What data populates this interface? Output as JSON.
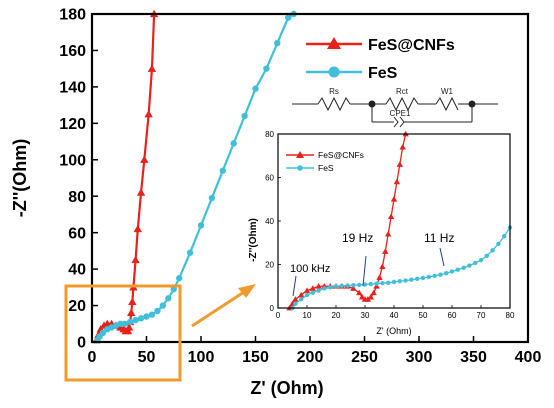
{
  "chart_data": [
    {
      "id": "main",
      "type": "line",
      "xlabel": "Z' (Ohm)",
      "ylabel": "-Z''(Ohm)",
      "xlim": [
        0,
        400
      ],
      "ylim": [
        0,
        180
      ],
      "xticks": [
        0,
        50,
        100,
        150,
        200,
        250,
        300,
        350,
        400
      ],
      "yticks": [
        0,
        20,
        40,
        60,
        80,
        100,
        120,
        140,
        160,
        180
      ],
      "legend_position": "top-right",
      "series": [
        {
          "name": "FeS@CNFs",
          "color": "#e8221b",
          "marker": "triangle",
          "x": [
            4,
            6,
            8,
            11,
            14,
            18,
            22,
            26,
            29,
            31,
            33,
            34,
            35,
            36,
            37,
            38,
            40,
            42,
            45,
            48,
            52,
            55,
            57
          ],
          "y": [
            1,
            4,
            7,
            9,
            10,
            10,
            9,
            8,
            7,
            6,
            6,
            8,
            11,
            16,
            22,
            30,
            45,
            62,
            82,
            100,
            125,
            150,
            180
          ]
        },
        {
          "name": "FeS",
          "color": "#3fc0d8",
          "marker": "circle",
          "x": [
            5,
            7,
            10,
            14,
            18,
            22,
            26,
            30,
            35,
            40,
            45,
            50,
            55,
            60,
            65,
            70,
            75,
            80,
            90,
            100,
            110,
            120,
            130,
            140,
            150,
            160,
            170,
            180,
            185
          ],
          "y": [
            1,
            3,
            5,
            7,
            8,
            9,
            10,
            10,
            11,
            12,
            13,
            14,
            15,
            17,
            20,
            24,
            29,
            35,
            49,
            64,
            79,
            94,
            109,
            124,
            139,
            150,
            164,
            178,
            180
          ]
        }
      ]
    },
    {
      "id": "inset",
      "type": "line",
      "xlabel": "Z' (Ohm)",
      "ylabel": "-Z''(Ohm)",
      "xlim": [
        0,
        80
      ],
      "ylim": [
        0,
        80
      ],
      "xticks": [
        0,
        10,
        20,
        30,
        40,
        50,
        60,
        70,
        80
      ],
      "yticks": [
        0,
        20,
        40,
        60,
        80
      ],
      "legend_position": "top-left",
      "annotations": [
        {
          "text": "100 kHz",
          "x": 7,
          "y": 0
        },
        {
          "text": "19 Hz",
          "x": 31,
          "y": 5
        },
        {
          "text": "11 Hz",
          "x": 58,
          "y": 17
        }
      ],
      "series": [
        {
          "name": "FeS@CNFs",
          "color": "#e8221b",
          "marker": "triangle",
          "x": [
            4,
            5,
            6,
            8,
            10,
            12,
            14,
            16,
            18,
            20,
            22,
            24,
            26,
            28,
            29,
            30,
            31,
            32,
            33,
            34,
            35,
            36,
            37,
            38,
            39,
            40,
            41,
            42,
            43,
            44
          ],
          "y": [
            0,
            2,
            4,
            6,
            8,
            9,
            10,
            10,
            10,
            10,
            10,
            10,
            9,
            7,
            5,
            4,
            4,
            5,
            7,
            10,
            14,
            19,
            26,
            34,
            42,
            50,
            58,
            66,
            74,
            80
          ]
        },
        {
          "name": "FeS",
          "color": "#3fc0d8",
          "marker": "circle",
          "x": [
            5,
            6,
            8,
            10,
            12,
            14,
            16,
            18,
            20,
            22,
            24,
            26,
            28,
            30,
            32,
            34,
            36,
            38,
            40,
            42,
            44,
            46,
            48,
            50,
            52,
            54,
            56,
            58,
            60,
            62,
            64,
            66,
            68,
            70,
            72,
            74,
            76,
            78,
            80
          ],
          "y": [
            0,
            2,
            4,
            6,
            7,
            8,
            9,
            9.5,
            10,
            10.2,
            10.3,
            10.5,
            10.6,
            10.8,
            11,
            11.2,
            11.4,
            11.6,
            12,
            12.3,
            12.6,
            13,
            13.4,
            13.8,
            14.3,
            14.8,
            15.3,
            16,
            16.8,
            17.6,
            18.5,
            19.5,
            20.7,
            22,
            24,
            26.5,
            29.5,
            33,
            37
          ]
        }
      ]
    }
  ],
  "circuit": {
    "labels": [
      "Rs",
      "Rct",
      "W1",
      "CPE1"
    ]
  },
  "colors": {
    "highlight_box": "#f39a2c",
    "arrow": "#f39a2c",
    "axis": "#000000"
  }
}
